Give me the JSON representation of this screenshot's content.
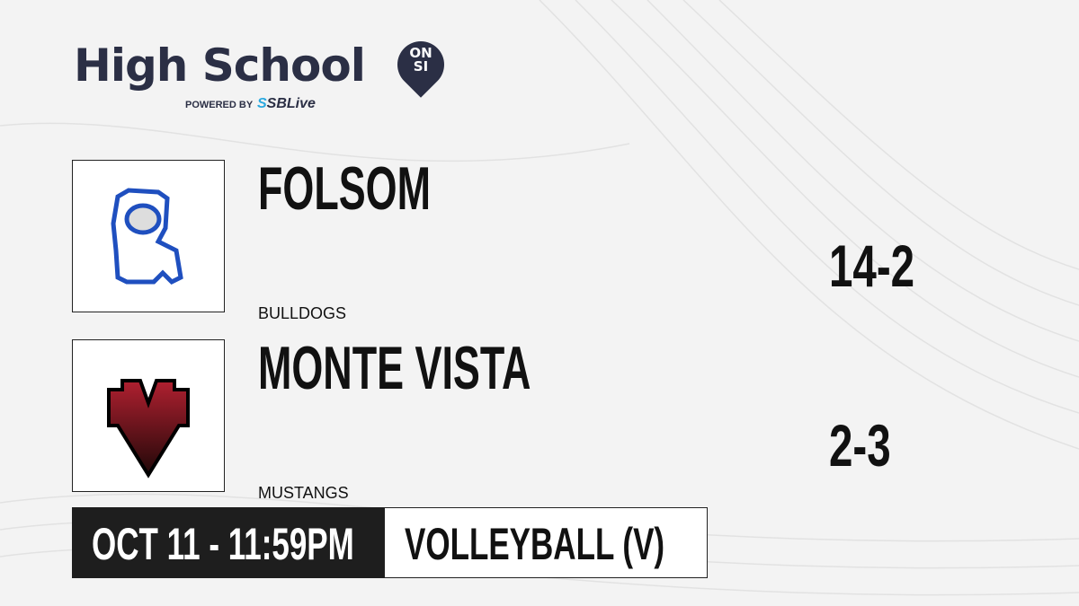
{
  "brand": {
    "title": "High School",
    "badge_line1": "ON",
    "badge_line2": "SI",
    "powered_by": "POWERED BY",
    "partner_prefix": "S",
    "partner": "SBLive"
  },
  "teams": [
    {
      "name": "FOLSOM",
      "mascot": "BULLDOGS",
      "record": "14-2",
      "logo": "bulldog-logo",
      "color": "#1f4fbf"
    },
    {
      "name": "MONTE VISTA",
      "mascot": "MUSTANGS",
      "record": "2-3",
      "logo": "mv-logo",
      "color": "#8b1a24"
    }
  ],
  "game": {
    "datetime": "OCT 11 - 11:59PM",
    "sport": "VOLLEYBALL (V)"
  }
}
